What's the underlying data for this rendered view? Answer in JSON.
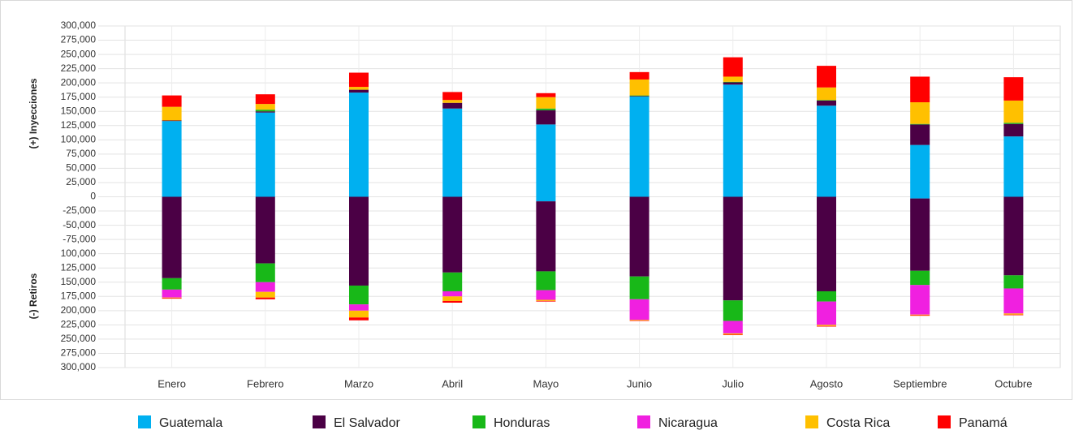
{
  "chart_data": {
    "type": "bar",
    "stacked": true,
    "y_label_positive": "(+) Inyecciones",
    "y_label_negative": "(-) Retiros",
    "categories": [
      "Enero",
      "Febrero",
      "Marzo",
      "Abril",
      "Mayo",
      "Junio",
      "Julio",
      "Agosto",
      "Septiembre",
      "Octubre"
    ],
    "series": [
      {
        "name": "Guatemala",
        "color": "#00b0f0",
        "values": [
          133000,
          148000,
          183000,
          155000,
          127000,
          176000,
          197000,
          160000,
          91000,
          106000
        ],
        "negative_values": [
          0,
          0,
          0,
          0,
          -8000,
          0,
          0,
          0,
          -3000,
          0
        ]
      },
      {
        "name": "El Salvador",
        "color": "#4b0045",
        "values": [
          1000,
          2000,
          5000,
          10000,
          25000,
          1000,
          4000,
          9000,
          36000,
          22000
        ],
        "negative_values": [
          -143000,
          -117000,
          -156000,
          -133000,
          -123000,
          -140000,
          -182000,
          -166000,
          -127000,
          -138000
        ]
      },
      {
        "name": "Honduras",
        "color": "#18b818",
        "values": [
          0,
          3000,
          0,
          0,
          3000,
          1000,
          1000,
          1000,
          1000,
          2000
        ],
        "negative_values": [
          -20000,
          -33000,
          -33000,
          -33000,
          -33000,
          -40000,
          -36000,
          -18000,
          -25000,
          -23000
        ]
      },
      {
        "name": "Nicaragua",
        "color": "#f020e0",
        "values": [
          0,
          0,
          0,
          0,
          0,
          0,
          0,
          0,
          0,
          0
        ],
        "negative_values": [
          -14000,
          -17000,
          -11000,
          -9000,
          -17000,
          -36000,
          -22000,
          -41000,
          -52000,
          -44000
        ]
      },
      {
        "name": "Costa Rica",
        "color": "#ffc000",
        "values": [
          24000,
          10000,
          5000,
          5000,
          20000,
          28000,
          9000,
          22000,
          38000,
          39000
        ],
        "negative_values": [
          -1000,
          -10000,
          -12000,
          -8000,
          -2000,
          -1000,
          -2000,
          -2000,
          -1000,
          -2000
        ]
      },
      {
        "name": "Panamá",
        "color": "#ff0000",
        "values": [
          20000,
          17000,
          25000,
          14000,
          7000,
          13000,
          34000,
          38000,
          45000,
          41000
        ],
        "negative_values": [
          -1000,
          -3000,
          -5000,
          -3000,
          -1000,
          -1000,
          -1000,
          -1000,
          -1000,
          -1000
        ]
      }
    ],
    "ylim": [
      -300000,
      300000
    ],
    "yticks": [
      {
        "value": 300000,
        "label": "300,000"
      },
      {
        "value": 275000,
        "label": "275,000"
      },
      {
        "value": 250000,
        "label": "250,000"
      },
      {
        "value": 225000,
        "label": "225,000"
      },
      {
        "value": 200000,
        "label": "200,000"
      },
      {
        "value": 175000,
        "label": "175,000"
      },
      {
        "value": 150000,
        "label": "150,000"
      },
      {
        "value": 125000,
        "label": "125,000"
      },
      {
        "value": 100000,
        "label": "100,000"
      },
      {
        "value": 75000,
        "label": "75,000"
      },
      {
        "value": 50000,
        "label": "50,000"
      },
      {
        "value": 25000,
        "label": "25,000"
      },
      0,
      {
        "value": -25000,
        "label": "-25,000"
      },
      {
        "value": -50000,
        "label": "-50,000"
      },
      {
        "value": -75000,
        "label": "-75,000"
      },
      {
        "value": -100000,
        "label": "100,000"
      },
      {
        "value": -125000,
        "label": "125,000"
      },
      {
        "value": -150000,
        "label": "150,000"
      },
      {
        "value": -175000,
        "label": "175,000"
      },
      {
        "value": -200000,
        "label": "200,000"
      },
      {
        "value": -225000,
        "label": "225,000"
      },
      {
        "value": -250000,
        "label": "250,000"
      },
      {
        "value": -275000,
        "label": "275,000"
      },
      {
        "value": -300000,
        "label": "300,000"
      }
    ],
    "grid": true,
    "legend": "bottom"
  }
}
